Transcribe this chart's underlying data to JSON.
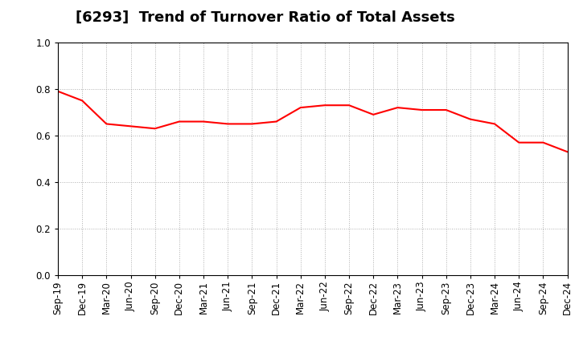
{
  "title": "[6293]  Trend of Turnover Ratio of Total Assets",
  "x_labels": [
    "Sep-19",
    "Dec-19",
    "Mar-20",
    "Jun-20",
    "Sep-20",
    "Dec-20",
    "Mar-21",
    "Jun-21",
    "Sep-21",
    "Dec-21",
    "Mar-22",
    "Jun-22",
    "Sep-22",
    "Dec-22",
    "Mar-23",
    "Jun-23",
    "Sep-23",
    "Dec-23",
    "Mar-24",
    "Jun-24",
    "Sep-24",
    "Dec-24"
  ],
  "y_values": [
    0.79,
    0.75,
    0.65,
    0.64,
    0.63,
    0.66,
    0.66,
    0.65,
    0.65,
    0.66,
    0.72,
    0.73,
    0.73,
    0.69,
    0.72,
    0.71,
    0.71,
    0.67,
    0.65,
    0.57,
    0.57,
    0.53
  ],
  "ylim": [
    0.0,
    1.0
  ],
  "yticks": [
    0.0,
    0.2,
    0.4,
    0.6,
    0.8,
    1.0
  ],
  "line_color": "#FF0000",
  "line_width": 1.5,
  "background_color": "#FFFFFF",
  "grid_color": "#999999",
  "title_fontsize": 13,
  "tick_fontsize": 8.5
}
